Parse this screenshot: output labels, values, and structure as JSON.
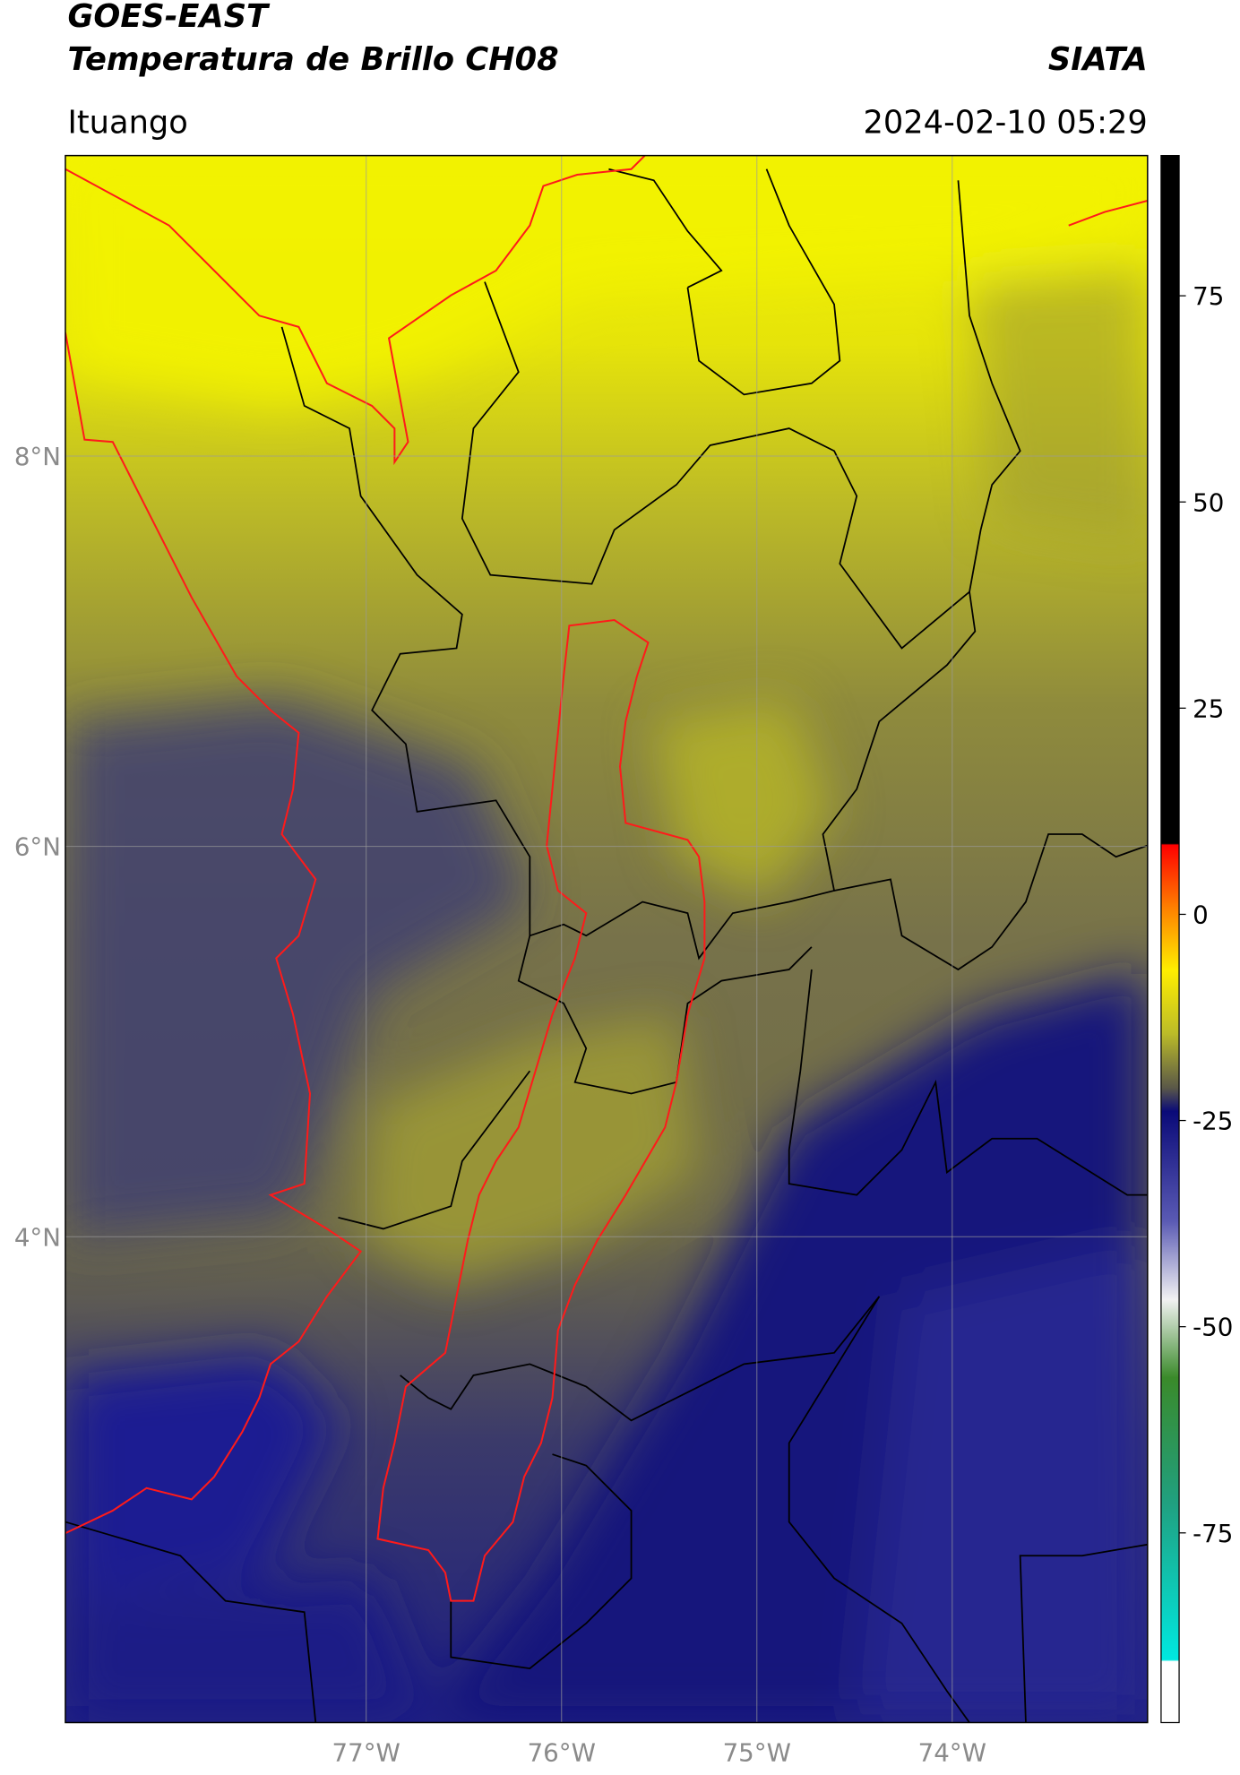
{
  "header": {
    "title_line1": "GOES-EAST",
    "title_line2": "Temperatura de Brillo CH08",
    "source": "SIATA",
    "region": "Ituango",
    "timestamp": "2024-02-10 05:29"
  },
  "map": {
    "xlim": [
      -78.54,
      -73.0
    ],
    "ylim": [
      1.51,
      9.54
    ],
    "xticks": [
      {
        "value": -77,
        "label": "77°W"
      },
      {
        "value": -76,
        "label": "76°W"
      },
      {
        "value": -75,
        "label": "75°W"
      },
      {
        "value": -74,
        "label": "74°W"
      }
    ],
    "yticks": [
      {
        "value": 8,
        "label": "8°N"
      },
      {
        "value": 6,
        "label": "6°N"
      },
      {
        "value": 4,
        "label": "4°N"
      }
    ],
    "grid": true
  },
  "colorbar": {
    "lim": [
      -98,
      92
    ],
    "ticks": [
      75,
      50,
      25,
      0,
      -25,
      -50,
      -75
    ]
  }
}
